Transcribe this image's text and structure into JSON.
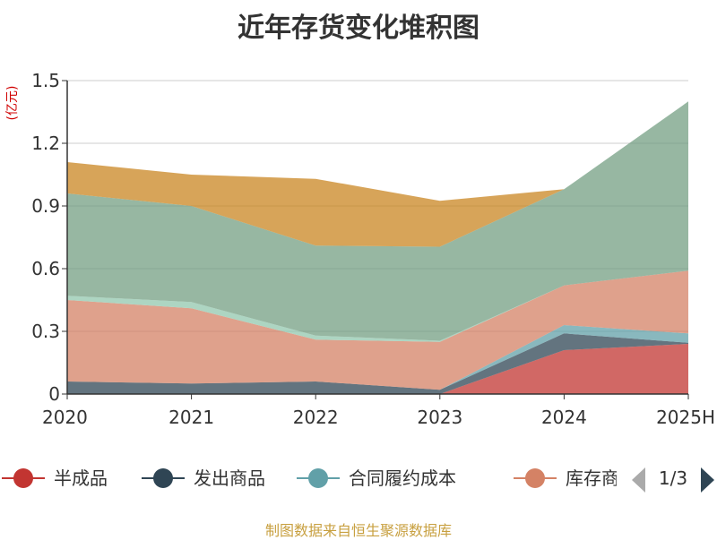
{
  "chart_data": {
    "type": "area",
    "stacked": true,
    "title": "近年存货变化堆积图",
    "y_unit": "(亿元)",
    "categories": [
      "2020",
      "2021",
      "2022",
      "2023",
      "2024",
      "2025H"
    ],
    "ylim": [
      0,
      1.5
    ],
    "y_ticks": [
      "0",
      "0.3",
      "0.6",
      "0.9",
      "1.2",
      "1.5"
    ],
    "grid": true,
    "series": [
      {
        "name": "半成品",
        "color": "#c23531",
        "values": [
          0,
          0,
          0,
          0,
          0.21,
          0.24
        ]
      },
      {
        "name": "发出商品",
        "color": "#2f4554",
        "values": [
          0.06,
          0.05,
          0.06,
          0.02,
          0.08,
          0.005
        ]
      },
      {
        "name": "合同履约成本",
        "color": "#61a0a8",
        "values": [
          0,
          0,
          0,
          0,
          0.04,
          0.045
        ]
      },
      {
        "name": "库存商品",
        "color": "#d48265",
        "values": [
          0.39,
          0.36,
          0.2,
          0.23,
          0.19,
          0.3
        ]
      },
      {
        "name": "",
        "color": "#91c7ae",
        "values": [
          0.02,
          0.03,
          0.02,
          0.005,
          0,
          0
        ]
      },
      {
        "name": "",
        "color": "#749f83",
        "values": [
          0.49,
          0.46,
          0.43,
          0.45,
          0.46,
          0.81
        ]
      },
      {
        "name": "",
        "color": "#ca8622",
        "values": [
          0.15,
          0.15,
          0.32,
          0.22,
          0,
          0
        ]
      }
    ]
  },
  "legend": {
    "visible_names": [
      "半成品",
      "发出商品",
      "合同履约成本",
      "库存商"
    ],
    "page": "1/3"
  },
  "source_note": "制图数据来自恒生聚源数据库"
}
